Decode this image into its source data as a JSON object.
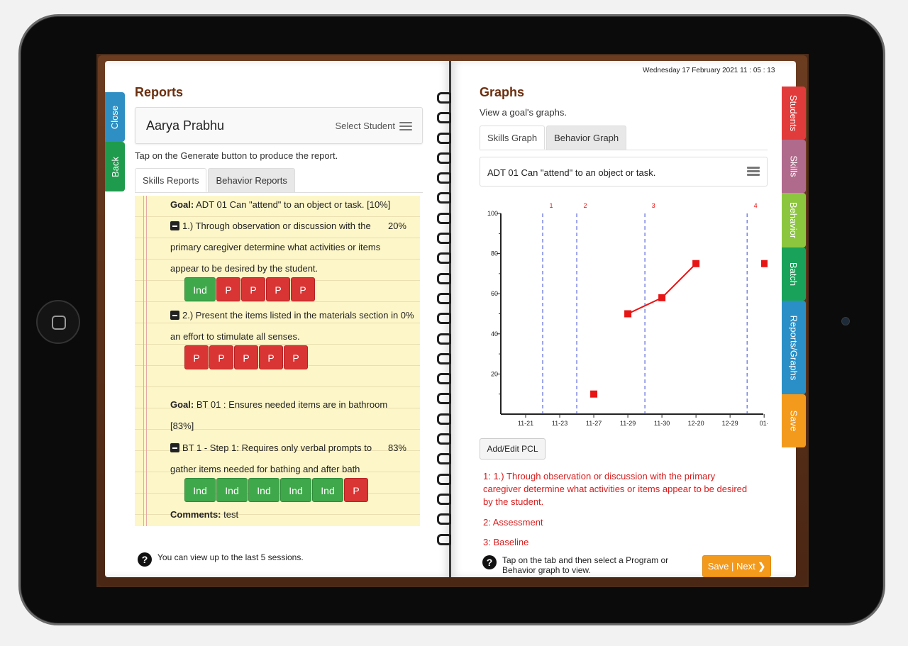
{
  "left_tabs": {
    "close": "Close",
    "back": "Back"
  },
  "right_tabs": [
    {
      "label": "Students",
      "color": "#e23b3b"
    },
    {
      "label": "Skills",
      "color": "#b06a8c"
    },
    {
      "label": "Behavior",
      "color": "#8cc63f"
    },
    {
      "label": "Batch",
      "color": "#19a35a"
    },
    {
      "label": "Reports/Graphs",
      "color": "#2a8fc6"
    },
    {
      "label": "Save",
      "color": "#f39a1d"
    }
  ],
  "reports": {
    "title": "Reports",
    "student_name": "Aarya Prabhu",
    "select_student": "Select Student",
    "hint": "Tap on the Generate button to produce the report.",
    "tabs": [
      "Skills Reports",
      "Behavior Reports"
    ],
    "goal1": {
      "label": "Goal:",
      "text": "ADT 01 Can \"attend\" to an object or task. [10%]",
      "obj1_lines": [
        "1.) Through observation or discussion with the",
        "primary caregiver determine what activities or items",
        "appear to be desired by the student."
      ],
      "obj1_pct": "20%",
      "obj1_chips": [
        "Ind",
        "P",
        "P",
        "P",
        "P"
      ],
      "obj2_lines": [
        "2.) Present the items listed in the materials section in 0%",
        "an effort to stimulate all senses."
      ],
      "obj2_chips": [
        "P",
        "P",
        "P",
        "P",
        "P"
      ]
    },
    "goal2": {
      "label": "Goal:",
      "text": "BT 01 : Ensures needed items are in bathroom",
      "pct_line": "[83%]",
      "step_lines": [
        "BT 1 - Step 1: Requires only verbal prompts to",
        "gather items needed for bathing and after bath"
      ],
      "step_pct": "83%",
      "chips": [
        "Ind",
        "Ind",
        "Ind",
        "Ind",
        "Ind",
        "P"
      ],
      "comments_label": "Comments:",
      "comments": "test"
    },
    "footer_help": "You can view up to the last 5 sessions."
  },
  "graphs": {
    "datetime": "Wednesday 17 February 2021    11 : 05 : 13",
    "title": "Graphs",
    "subtitle": "View a goal's graphs.",
    "tabs": [
      "Skills Graph",
      "Behavior Graph"
    ],
    "goal_select": "ADT 01 Can \"attend\" to an object or task.",
    "add_edit_pcl": "Add/Edit PCL",
    "legend": [
      "1: 1.) Through observation or discussion with the primary caregiver determine what activities or items appear to be desired by the student.",
      "2: Assessment",
      "3: Baseline"
    ],
    "footer_help": "Tap on the tab and then select a Program or Behavior graph to view.",
    "save_next": "Save | Next"
  },
  "chart_data": {
    "type": "line",
    "x": [
      "11-21",
      "11-23",
      "11-27",
      "11-29",
      "11-30",
      "12-20",
      "12-29",
      "01-"
    ],
    "yticks": [
      20,
      40,
      60,
      80,
      100
    ],
    "ylim": [
      0,
      100
    ],
    "phase_lines": [
      {
        "label": "1",
        "after_x_index": 0
      },
      {
        "label": "2",
        "after_x_index": 1
      },
      {
        "label": "3",
        "after_x_index": 3
      },
      {
        "label": "4",
        "after_x_index": 6
      }
    ],
    "points": [
      {
        "x": "11-27",
        "y": 10
      },
      {
        "x": "11-29",
        "y": 50
      },
      {
        "x": "11-30",
        "y": 58
      },
      {
        "x": "12-20",
        "y": 75
      },
      {
        "x": "01-",
        "y": 75
      }
    ],
    "connected_segments": [
      [
        1,
        2,
        3
      ]
    ],
    "color": "#e81515"
  }
}
